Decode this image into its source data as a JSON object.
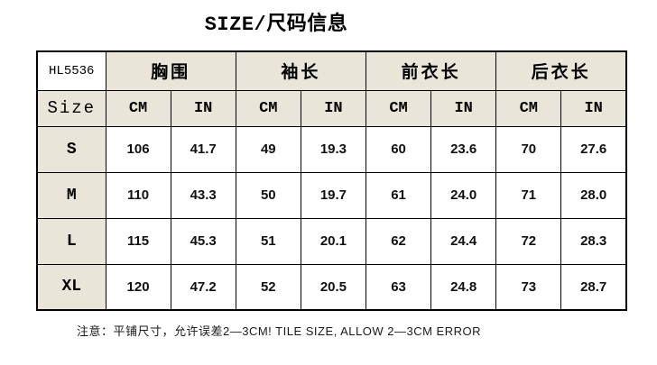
{
  "title": "SIZE/尺码信息",
  "chart_data": {
    "type": "table",
    "title": "SIZE/尺码信息",
    "model_code": "HL5536",
    "size_label": "Size",
    "group_headers": [
      "胸围",
      "袖长",
      "前衣长",
      "后衣长"
    ],
    "unit_headers": [
      "CM",
      "IN",
      "CM",
      "IN",
      "CM",
      "IN",
      "CM",
      "IN"
    ],
    "rows": [
      {
        "size": "S",
        "values": [
          "106",
          "41.7",
          "49",
          "19.3",
          "60",
          "23.6",
          "70",
          "27.6"
        ]
      },
      {
        "size": "M",
        "values": [
          "110",
          "43.3",
          "50",
          "19.7",
          "61",
          "24.0",
          "71",
          "28.0"
        ]
      },
      {
        "size": "L",
        "values": [
          "115",
          "45.3",
          "51",
          "20.1",
          "62",
          "24.4",
          "72",
          "28.3"
        ]
      },
      {
        "size": "XL",
        "values": [
          "120",
          "47.2",
          "52",
          "20.5",
          "63",
          "24.8",
          "73",
          "28.7"
        ]
      }
    ],
    "note": "注意：平铺尺寸，允许误差2—3CM! TILE SIZE, ALLOW 2—3CM ERROR"
  },
  "colors": {
    "header_bg": "#E9E5D8",
    "border": "#000000",
    "background": "#FFFFFF",
    "text": "#000000"
  }
}
